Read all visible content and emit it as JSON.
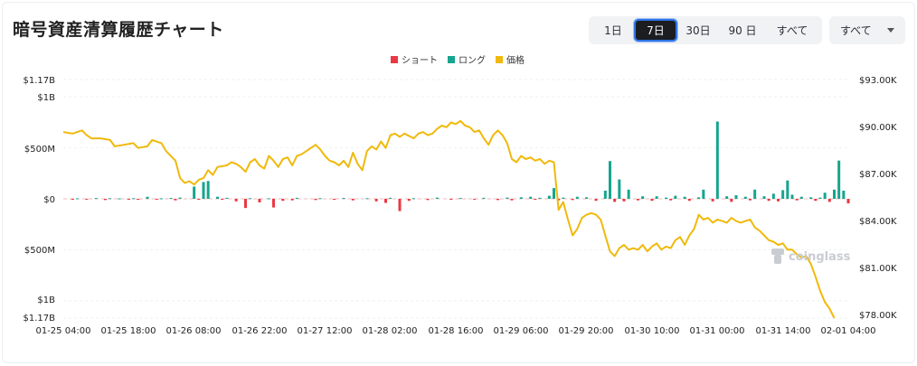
{
  "title": "暗号資産清算履歴チャート",
  "range_buttons": [
    {
      "label": "1日",
      "active": false
    },
    {
      "label": "7日",
      "active": true
    },
    {
      "label": "30日",
      "active": false
    },
    {
      "label": "90 日",
      "active": false
    },
    {
      "label": "すべて",
      "active": false
    }
  ],
  "select": {
    "value": "すべて"
  },
  "watermark": "coinglass",
  "colors": {
    "short": "#ea3943",
    "long": "#16a58e",
    "price": "#f0b90b"
  },
  "chart_data": {
    "type": "bar+line",
    "legend": [
      {
        "name": "ショート",
        "color": "#ea3943"
      },
      {
        "name": "ロング",
        "color": "#16a58e"
      },
      {
        "name": "価格",
        "color": "#f0b90b"
      }
    ],
    "legend_position": "top-center",
    "grid": true,
    "left_axis": {
      "ticks": [
        {
          "label": "$1.17B",
          "value": 1170
        },
        {
          "label": "$1B",
          "value": 1000
        },
        {
          "label": "$500M",
          "value": 500
        },
        {
          "label": "$0",
          "value": 0
        },
        {
          "label": "$500M",
          "value": -500
        },
        {
          "label": "$1B",
          "value": -1000
        },
        {
          "label": "$1.17B",
          "value": -1170
        }
      ],
      "range": [
        -1170,
        1170
      ],
      "unit": "millions USD"
    },
    "right_axis": {
      "ticks": [
        "$93.00K",
        "$90.00K",
        "$87.00K",
        "$84.00K",
        "$81.00K",
        "$78.00K"
      ],
      "range": [
        78,
        93
      ],
      "unit": "thousands USD"
    },
    "x_ticks": [
      "01-25 04:00",
      "01-25 18:00",
      "01-26 08:00",
      "01-26 22:00",
      "01-27 12:00",
      "01-28 02:00",
      "01-28 16:00",
      "01-29 06:00",
      "01-29 20:00",
      "01-30 10:00",
      "01-31 00:00",
      "01-31 14:00",
      "02-01 04:00"
    ],
    "x_range_hours": [
      0,
      168
    ],
    "long_bars": [
      {
        "t": 3,
        "v": 5
      },
      {
        "t": 7,
        "v": 8
      },
      {
        "t": 10,
        "v": 6
      },
      {
        "t": 12,
        "v": 4
      },
      {
        "t": 15,
        "v": 6
      },
      {
        "t": 18,
        "v": 20
      },
      {
        "t": 21,
        "v": 5
      },
      {
        "t": 23,
        "v": 8
      },
      {
        "t": 25,
        "v": 12
      },
      {
        "t": 28,
        "v": 120
      },
      {
        "t": 30,
        "v": 165
      },
      {
        "t": 31,
        "v": 175
      },
      {
        "t": 33,
        "v": 20
      },
      {
        "t": 35,
        "v": 10
      },
      {
        "t": 40,
        "v": 6
      },
      {
        "t": 44,
        "v": 5
      },
      {
        "t": 50,
        "v": 10
      },
      {
        "t": 55,
        "v": 6
      },
      {
        "t": 60,
        "v": 8
      },
      {
        "t": 65,
        "v": 6
      },
      {
        "t": 70,
        "v": 10
      },
      {
        "t": 75,
        "v": 6
      },
      {
        "t": 80,
        "v": 12
      },
      {
        "t": 85,
        "v": 8
      },
      {
        "t": 90,
        "v": 10
      },
      {
        "t": 95,
        "v": 12
      },
      {
        "t": 98,
        "v": 15
      },
      {
        "t": 100,
        "v": 20
      },
      {
        "t": 102,
        "v": 10
      },
      {
        "t": 104,
        "v": 30
      },
      {
        "t": 105,
        "v": 105
      },
      {
        "t": 107,
        "v": 12
      },
      {
        "t": 110,
        "v": 20
      },
      {
        "t": 112,
        "v": 15
      },
      {
        "t": 116,
        "v": 80
      },
      {
        "t": 117,
        "v": 370
      },
      {
        "t": 119,
        "v": 190
      },
      {
        "t": 121,
        "v": 90
      },
      {
        "t": 124,
        "v": 25
      },
      {
        "t": 127,
        "v": 25
      },
      {
        "t": 129,
        "v": 12
      },
      {
        "t": 131,
        "v": 30
      },
      {
        "t": 133,
        "v": 20
      },
      {
        "t": 136,
        "v": 15
      },
      {
        "t": 137,
        "v": 90
      },
      {
        "t": 140,
        "v": 758
      },
      {
        "t": 142,
        "v": 25
      },
      {
        "t": 144,
        "v": 35
      },
      {
        "t": 146,
        "v": 20
      },
      {
        "t": 148,
        "v": 90
      },
      {
        "t": 150,
        "v": 25
      },
      {
        "t": 152,
        "v": 50
      },
      {
        "t": 154,
        "v": 85
      },
      {
        "t": 155,
        "v": 180
      },
      {
        "t": 156,
        "v": 40
      },
      {
        "t": 158,
        "v": 20
      },
      {
        "t": 160,
        "v": 15
      },
      {
        "t": 162,
        "v": 12
      },
      {
        "t": 163,
        "v": 60
      },
      {
        "t": 165,
        "v": 90
      },
      {
        "t": 166,
        "v": 375
      },
      {
        "t": 167,
        "v": 80
      }
    ],
    "short_bars": [
      {
        "t": 2,
        "v": 10
      },
      {
        "t": 5,
        "v": 8
      },
      {
        "t": 9,
        "v": 12
      },
      {
        "t": 14,
        "v": 6
      },
      {
        "t": 16,
        "v": 10
      },
      {
        "t": 20,
        "v": 8
      },
      {
        "t": 24,
        "v": 15
      },
      {
        "t": 29,
        "v": 10
      },
      {
        "t": 34,
        "v": 10
      },
      {
        "t": 37,
        "v": 25
      },
      {
        "t": 39,
        "v": 90
      },
      {
        "t": 42,
        "v": 35
      },
      {
        "t": 45,
        "v": 85
      },
      {
        "t": 47,
        "v": 20
      },
      {
        "t": 49,
        "v": 15
      },
      {
        "t": 54,
        "v": 12
      },
      {
        "t": 58,
        "v": 10
      },
      {
        "t": 62,
        "v": 15
      },
      {
        "t": 67,
        "v": 25
      },
      {
        "t": 69,
        "v": 40
      },
      {
        "t": 72,
        "v": 120
      },
      {
        "t": 74,
        "v": 20
      },
      {
        "t": 78,
        "v": 12
      },
      {
        "t": 83,
        "v": 10
      },
      {
        "t": 88,
        "v": 8
      },
      {
        "t": 93,
        "v": 12
      },
      {
        "t": 96,
        "v": 15
      },
      {
        "t": 101,
        "v": 10
      },
      {
        "t": 106,
        "v": 15
      },
      {
        "t": 109,
        "v": 12
      },
      {
        "t": 114,
        "v": 20
      },
      {
        "t": 118,
        "v": 30
      },
      {
        "t": 120,
        "v": 25
      },
      {
        "t": 123,
        "v": 15
      },
      {
        "t": 126,
        "v": 20
      },
      {
        "t": 130,
        "v": 15
      },
      {
        "t": 134,
        "v": 20
      },
      {
        "t": 139,
        "v": 25
      },
      {
        "t": 143,
        "v": 30
      },
      {
        "t": 147,
        "v": 15
      },
      {
        "t": 151,
        "v": 20
      },
      {
        "t": 153,
        "v": 25
      },
      {
        "t": 157,
        "v": 15
      },
      {
        "t": 161,
        "v": 20
      },
      {
        "t": 164,
        "v": 30
      },
      {
        "t": 168,
        "v": 45
      }
    ],
    "price": [
      [
        0,
        89.7
      ],
      [
        2,
        89.6
      ],
      [
        4,
        89.8
      ],
      [
        5,
        89.5
      ],
      [
        6,
        89.3
      ],
      [
        8,
        89.3
      ],
      [
        10,
        89.2
      ],
      [
        11,
        88.8
      ],
      [
        13,
        88.9
      ],
      [
        15,
        89.0
      ],
      [
        16,
        88.7
      ],
      [
        18,
        88.8
      ],
      [
        19,
        89.2
      ],
      [
        21,
        89.0
      ],
      [
        22,
        88.5
      ],
      [
        24,
        87.9
      ],
      [
        25,
        86.8
      ],
      [
        26,
        86.5
      ],
      [
        27,
        86.6
      ],
      [
        28,
        86.4
      ],
      [
        29,
        86.7
      ],
      [
        30,
        86.8
      ],
      [
        31,
        87.3
      ],
      [
        32,
        87.0
      ],
      [
        33,
        87.5
      ],
      [
        35,
        87.6
      ],
      [
        36,
        87.8
      ],
      [
        37,
        87.7
      ],
      [
        38,
        87.5
      ],
      [
        39,
        87.2
      ],
      [
        40,
        87.8
      ],
      [
        41,
        88.0
      ],
      [
        42,
        87.6
      ],
      [
        43,
        87.4
      ],
      [
        44,
        88.2
      ],
      [
        45,
        87.9
      ],
      [
        46,
        87.5
      ],
      [
        47,
        88.0
      ],
      [
        48,
        88.1
      ],
      [
        49,
        87.6
      ],
      [
        50,
        88.2
      ],
      [
        51,
        88.3
      ],
      [
        52,
        88.5
      ],
      [
        53,
        88.7
      ],
      [
        54,
        88.9
      ],
      [
        55,
        88.6
      ],
      [
        56,
        88.2
      ],
      [
        57,
        87.9
      ],
      [
        58,
        87.8
      ],
      [
        59,
        87.6
      ],
      [
        60,
        87.9
      ],
      [
        61,
        87.5
      ],
      [
        62,
        88.4
      ],
      [
        63,
        87.7
      ],
      [
        64,
        87.3
      ],
      [
        65,
        88.5
      ],
      [
        66,
        88.8
      ],
      [
        67,
        88.6
      ],
      [
        68,
        89.1
      ],
      [
        69,
        88.7
      ],
      [
        70,
        89.5
      ],
      [
        71,
        89.6
      ],
      [
        72,
        89.4
      ],
      [
        73,
        89.6
      ],
      [
        75,
        89.3
      ],
      [
        76,
        89.6
      ],
      [
        77,
        89.7
      ],
      [
        78,
        89.5
      ],
      [
        79,
        89.6
      ],
      [
        80,
        89.9
      ],
      [
        81,
        90.1
      ],
      [
        82,
        90.0
      ],
      [
        83,
        90.3
      ],
      [
        84,
        90.2
      ],
      [
        85,
        90.4
      ],
      [
        86,
        90.1
      ],
      [
        87,
        90.0
      ],
      [
        88,
        89.7
      ],
      [
        89,
        89.8
      ],
      [
        90,
        89.3
      ],
      [
        91,
        88.9
      ],
      [
        92,
        89.5
      ],
      [
        93,
        89.8
      ],
      [
        94,
        89.5
      ],
      [
        95,
        89.0
      ],
      [
        96,
        88.0
      ],
      [
        97,
        87.8
      ],
      [
        98,
        88.2
      ],
      [
        99,
        88.0
      ],
      [
        100,
        88.1
      ],
      [
        101,
        87.9
      ],
      [
        102,
        88.0
      ],
      [
        103,
        87.7
      ],
      [
        104,
        87.9
      ],
      [
        105,
        87.8
      ],
      [
        106,
        84.8
      ],
      [
        107,
        85.3
      ],
      [
        108,
        84.2
      ],
      [
        109,
        83.2
      ],
      [
        110,
        83.6
      ],
      [
        111,
        84.3
      ],
      [
        112,
        84.5
      ],
      [
        113,
        84.6
      ],
      [
        114,
        84.5
      ],
      [
        115,
        84.2
      ],
      [
        116,
        83.2
      ],
      [
        117,
        82.2
      ],
      [
        118,
        81.9
      ],
      [
        119,
        82.4
      ],
      [
        120,
        82.6
      ],
      [
        121,
        82.3
      ],
      [
        122,
        82.4
      ],
      [
        123,
        82.3
      ],
      [
        124,
        82.6
      ],
      [
        125,
        82.2
      ],
      [
        126,
        82.5
      ],
      [
        127,
        82.7
      ],
      [
        128,
        82.3
      ],
      [
        129,
        82.5
      ],
      [
        130,
        82.4
      ],
      [
        131,
        82.9
      ],
      [
        132,
        83.1
      ],
      [
        133,
        82.6
      ],
      [
        134,
        83.2
      ],
      [
        135,
        83.6
      ],
      [
        136,
        84.5
      ],
      [
        137,
        84.2
      ],
      [
        138,
        84.3
      ],
      [
        139,
        84.0
      ],
      [
        140,
        84.2
      ],
      [
        141,
        84.1
      ],
      [
        142,
        84.0
      ],
      [
        143,
        84.3
      ],
      [
        144,
        84.1
      ],
      [
        145,
        84.0
      ],
      [
        146,
        84.1
      ],
      [
        147,
        84.2
      ],
      [
        148,
        83.7
      ],
      [
        149,
        83.5
      ],
      [
        150,
        83.2
      ],
      [
        151,
        82.9
      ],
      [
        152,
        82.8
      ],
      [
        153,
        82.6
      ],
      [
        154,
        82.7
      ],
      [
        155,
        82.3
      ],
      [
        156,
        82.3
      ],
      [
        157,
        82.0
      ],
      [
        158,
        81.8
      ],
      [
        159,
        81.9
      ],
      [
        160,
        81.4
      ],
      [
        161,
        80.6
      ],
      [
        162,
        79.7
      ],
      [
        163,
        79.0
      ],
      [
        164,
        78.6
      ],
      [
        165,
        78.0
      ]
    ]
  }
}
